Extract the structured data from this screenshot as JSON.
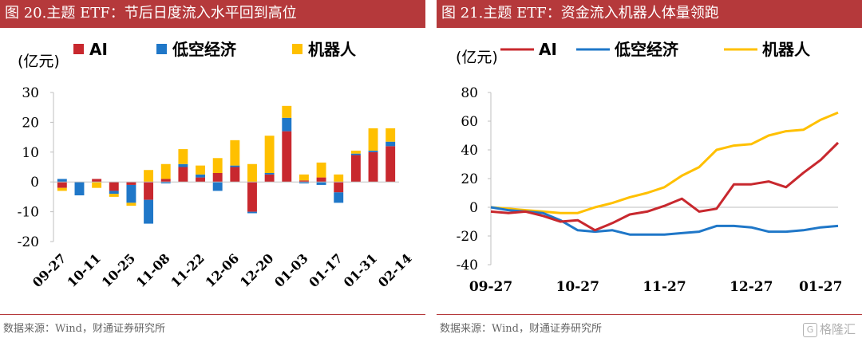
{
  "left": {
    "title": "图 20.主题 ETF：节后日度流入水平回到高位",
    "source": "数据来源：Wind，财通证券研究所",
    "chart_data": {
      "type": "bar",
      "stacked": true,
      "unit_label": "(亿元)",
      "ylim": [
        -20,
        30
      ],
      "yticks": [
        -20,
        -10,
        0,
        10,
        20,
        30
      ],
      "xtick_labels": [
        "09-27",
        "10-11",
        "10-25",
        "11-08",
        "11-22",
        "12-06",
        "12-20",
        "01-03",
        "01-17",
        "01-31",
        "02-14"
      ],
      "legend": [
        "AI",
        "低空经济",
        "机器人"
      ],
      "colors": [
        "#c8282e",
        "#1f77c8",
        "#ffc000"
      ],
      "series": [
        {
          "name": "AI",
          "values": [
            -2,
            0,
            1,
            -3,
            -1,
            -6,
            1,
            5,
            1.5,
            3,
            5,
            -10,
            2.5,
            17,
            0.5,
            1.5,
            -3.5,
            9,
            10,
            12
          ]
        },
        {
          "name": "低空经济",
          "values": [
            1,
            -4.5,
            0,
            -1,
            -6,
            -8,
            -0.5,
            1,
            1,
            -3,
            0.5,
            -0.5,
            0.5,
            4.5,
            -0.5,
            -1,
            -3.5,
            0.5,
            0.5,
            1.5
          ]
        },
        {
          "name": "机器人",
          "values": [
            -1,
            0,
            -2,
            -1,
            -1,
            4,
            5,
            5,
            3,
            5,
            8.5,
            6,
            12.5,
            4,
            2,
            5,
            2.5,
            1,
            7.5,
            4.5
          ]
        }
      ]
    }
  },
  "right": {
    "title": "图 21.主题 ETF：资金流入机器人体量领跑",
    "source": "数据来源：Wind，财通证券研究所",
    "watermark": "格隆汇",
    "chart_data": {
      "type": "line",
      "unit_label": "(亿元)",
      "ylim": [
        -40,
        80
      ],
      "yticks": [
        -40,
        -20,
        0,
        20,
        40,
        60,
        80
      ],
      "xtick_labels": [
        "09-27",
        "10-27",
        "11-27",
        "12-27",
        "01-27"
      ],
      "legend": [
        "AI",
        "低空经济",
        "机器人"
      ],
      "colors": [
        "#c8282e",
        "#1f77c8",
        "#ffc000"
      ],
      "series": [
        {
          "name": "AI",
          "values": [
            -3,
            -4,
            -3,
            -6,
            -10,
            -9,
            -16,
            -11,
            -5,
            -3,
            1,
            6,
            -3,
            -1,
            16,
            16,
            18,
            14,
            24,
            33,
            45
          ]
        },
        {
          "name": "低空经济",
          "values": [
            0,
            -2,
            -3,
            -4,
            -9,
            -16,
            -17,
            -16,
            -19,
            -19,
            -19,
            -18,
            -17,
            -13,
            -13,
            -14,
            -17,
            -17,
            -16,
            -14,
            -13
          ]
        },
        {
          "name": "机器人",
          "values": [
            0,
            -1,
            -2,
            -3,
            -4,
            -4,
            0,
            3,
            7,
            10,
            14,
            22,
            28,
            40,
            43,
            44,
            50,
            53,
            54,
            61,
            66
          ]
        }
      ]
    }
  }
}
